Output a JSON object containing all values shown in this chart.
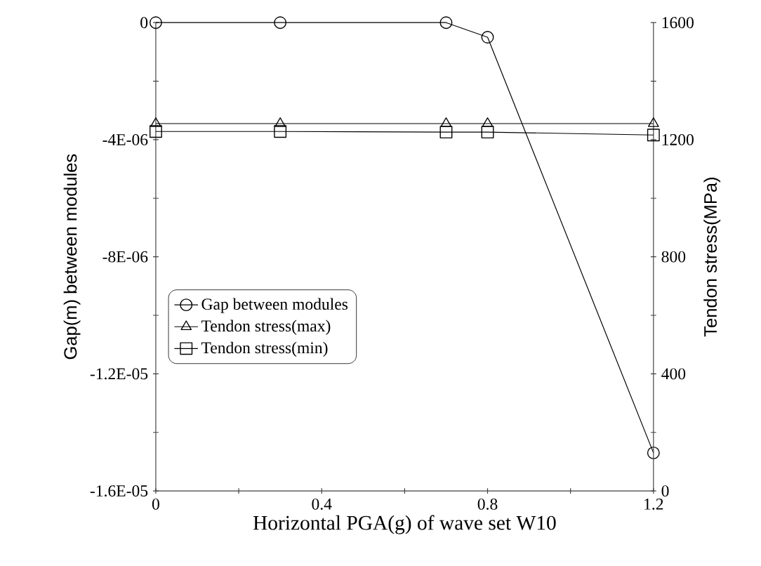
{
  "chart_data": {
    "type": "line",
    "xlabel": "Horizontal PGA(g) of wave set W10",
    "ylabel": "Gap(m) between modules",
    "y2label": "Tendon stress(MPa)",
    "x": [
      0,
      0.3,
      0.7,
      0.8,
      1.2
    ],
    "series": [
      {
        "name": "Gap between modules",
        "color": "#000000",
        "marker": "circle",
        "values": [
          0,
          0,
          0,
          -5e-07,
          -1.47e-05
        ]
      },
      {
        "name": "Tendon stress(max)",
        "color": "#000000",
        "marker": "triangle",
        "axis": "y2",
        "values": [
          1255,
          1255,
          1255,
          1255,
          1255
        ]
      },
      {
        "name": "Tendon stress(min)",
        "color": "#000000",
        "marker": "square",
        "axis": "y2",
        "values": [
          1228,
          1228,
          1226,
          1226,
          1216
        ]
      }
    ],
    "xlim": [
      0,
      1.2
    ],
    "xticks": [
      0,
      {
        "value": 0.2,
        "label": null
      },
      0.4,
      {
        "value": 0.6,
        "label": null
      },
      0.8,
      {
        "value": 1.0,
        "label": null
      },
      1.2
    ],
    "ylim": [
      -1.6e-05,
      0
    ],
    "yticks": [
      {
        "value": -1.6e-05,
        "label": "-1.6E-05"
      },
      {
        "value": -1.4e-05,
        "label": null
      },
      {
        "value": -1.2e-05,
        "label": "-1.2E-05"
      },
      {
        "value": -1e-05,
        "label": null
      },
      {
        "value": -8e-06,
        "label": "-8E-06"
      },
      {
        "value": -6e-06,
        "label": null
      },
      {
        "value": -4e-06,
        "label": "-4E-06"
      },
      {
        "value": -2e-06,
        "label": null
      },
      0
    ],
    "y2lim": [
      0,
      1600
    ],
    "y2ticks": [
      0,
      {
        "value": 200,
        "label": null
      },
      400,
      {
        "value": 600,
        "label": null
      },
      800,
      {
        "value": 1000,
        "label": null
      },
      1200,
      {
        "value": 1400,
        "label": null
      },
      1600
    ],
    "grid": false,
    "legend": "left",
    "line_style": "solid"
  }
}
